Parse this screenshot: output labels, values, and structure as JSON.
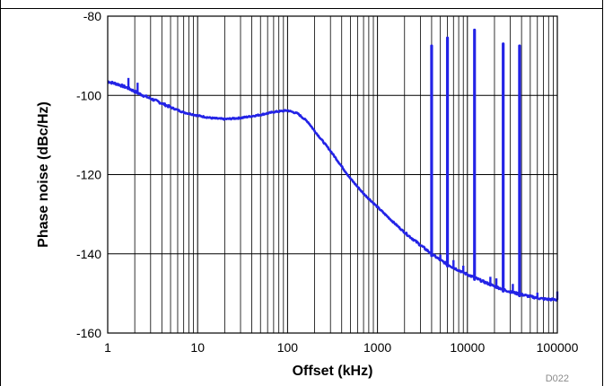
{
  "chart_data": {
    "type": "line",
    "title": "",
    "xlabel": "Offset (kHz)",
    "ylabel": "Phase noise (dBc/Hz)",
    "xscale": "log",
    "xlim": [
      1,
      100000
    ],
    "ylim": [
      -160,
      -80
    ],
    "x_ticks": [
      1,
      10,
      100,
      1000,
      10000,
      100000
    ],
    "x_tick_labels": [
      "1",
      "10",
      "100",
      "1000",
      "10000",
      "100000"
    ],
    "y_ticks": [
      -80,
      -100,
      -120,
      -140,
      -160
    ],
    "y_tick_labels": [
      "-80",
      "-100",
      "-120",
      "-140",
      "-160"
    ],
    "grid": true,
    "legend": "none",
    "series_color": "#2323e6",
    "figure_id": "D022",
    "series": [
      {
        "x": [
          1,
          1.3,
          1.7,
          2.2,
          3,
          4,
          5,
          7,
          10,
          14,
          20,
          30,
          50,
          70,
          100,
          130,
          170,
          200,
          300,
          500,
          700,
          1000,
          1500,
          2000,
          3000,
          4000,
          5000,
          7000,
          10000,
          15000,
          20000,
          30000,
          50000,
          70000,
          100000
        ],
        "y": [
          -96.5,
          -97.2,
          -98.2,
          -99.5,
          -100.8,
          -102,
          -103,
          -104.3,
          -105.1,
          -105.7,
          -106,
          -105.7,
          -104.9,
          -104.2,
          -103.8,
          -104.6,
          -106.8,
          -109,
          -114,
          -121,
          -124.8,
          -128.2,
          -132,
          -134.6,
          -137.8,
          -140,
          -141.6,
          -143.5,
          -145.2,
          -147,
          -148.2,
          -149.6,
          -150.8,
          -151.4,
          -151.6
        ]
      }
    ],
    "spurs": [
      {
        "x": 4000,
        "y": -87.5
      },
      {
        "x": 6000,
        "y": -85.5
      },
      {
        "x": 12000,
        "y": -83.5
      },
      {
        "x": 25000,
        "y": -87
      },
      {
        "x": 38000,
        "y": -87.5
      }
    ]
  }
}
